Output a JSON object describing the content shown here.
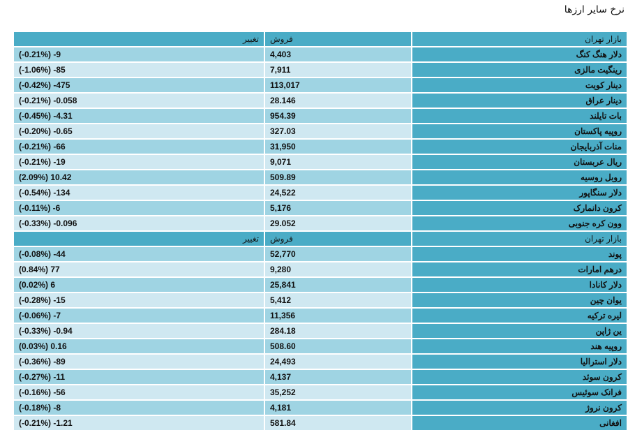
{
  "title": "نرخ سایر ارزها",
  "header": {
    "market": "بازار تهران",
    "sell": "فروش",
    "change": "تغییر"
  },
  "rows": [
    {
      "type": "data",
      "name": "دلار هنگ کنگ",
      "sell": "4,403",
      "change": "(-0.21%) -9"
    },
    {
      "type": "data",
      "name": "رینگیت مالزی",
      "sell": "7,911",
      "change": "(-1.06%) -85"
    },
    {
      "type": "data",
      "name": "دینار کویت",
      "sell": "113,017",
      "change": "(-0.42%) -475"
    },
    {
      "type": "data",
      "name": "دینار عراق",
      "sell": "28.146",
      "change": "(-0.21%) -0.058"
    },
    {
      "type": "data",
      "name": "بات تایلند",
      "sell": "954.39",
      "change": "(-0.45%) -4.31"
    },
    {
      "type": "data",
      "name": "روپیه پاکستان",
      "sell": "327.03",
      "change": "(-0.20%) -0.65"
    },
    {
      "type": "data",
      "name": "منات آذربایجان",
      "sell": "31,950",
      "change": "(-0.21%) -66"
    },
    {
      "type": "data",
      "name": "ریال عربستان",
      "sell": "9,071",
      "change": "(-0.21%) -19"
    },
    {
      "type": "data",
      "name": "روبل روسیه",
      "sell": "509.89",
      "change": "(2.09%) 10.42"
    },
    {
      "type": "data",
      "name": "دلار سنگاپور",
      "sell": "24,522",
      "change": "(-0.54%) -134"
    },
    {
      "type": "data",
      "name": "کرون دانمارک",
      "sell": "5,176",
      "change": "(-0.11%) -6"
    },
    {
      "type": "data",
      "name": "وون کره جنوبی",
      "sell": "29.052",
      "change": "(-0.33%) -0.096"
    },
    {
      "type": "header",
      "name": "بازار تهران",
      "sell": "فروش",
      "change": "تغییر"
    },
    {
      "type": "data",
      "name": "پوند",
      "sell": "52,770",
      "change": "(-0.08%) -44"
    },
    {
      "type": "data",
      "name": "درهم امارات",
      "sell": "9,280",
      "change": "(0.84%) 77"
    },
    {
      "type": "data",
      "name": "دلار کانادا",
      "sell": "25,841",
      "change": "(0.02%) 6"
    },
    {
      "type": "data",
      "name": "یوان چین",
      "sell": "5,412",
      "change": "(-0.28%) -15"
    },
    {
      "type": "data",
      "name": "لیره ترکیه",
      "sell": "11,356",
      "change": "(-0.06%) -7"
    },
    {
      "type": "data",
      "name": "ین ژاپن",
      "sell": "284.18",
      "change": "(-0.33%) -0.94"
    },
    {
      "type": "data",
      "name": "روپیه هند",
      "sell": "508.60",
      "change": "(0.03%) 0.16"
    },
    {
      "type": "data",
      "name": "دلار استرالیا",
      "sell": "24,493",
      "change": "(-0.36%) -89"
    },
    {
      "type": "data",
      "name": "کرون سوئد",
      "sell": "4,137",
      "change": "(-0.27%) -11"
    },
    {
      "type": "data",
      "name": "فرانک سوئیس",
      "sell": "35,252",
      "change": "(-0.16%) -56"
    },
    {
      "type": "data",
      "name": "کرون نروژ",
      "sell": "4,181",
      "change": "(-0.18%) -8"
    },
    {
      "type": "data",
      "name": "افغانی",
      "sell": "581.84",
      "change": "(-0.21%) -1.21"
    }
  ]
}
